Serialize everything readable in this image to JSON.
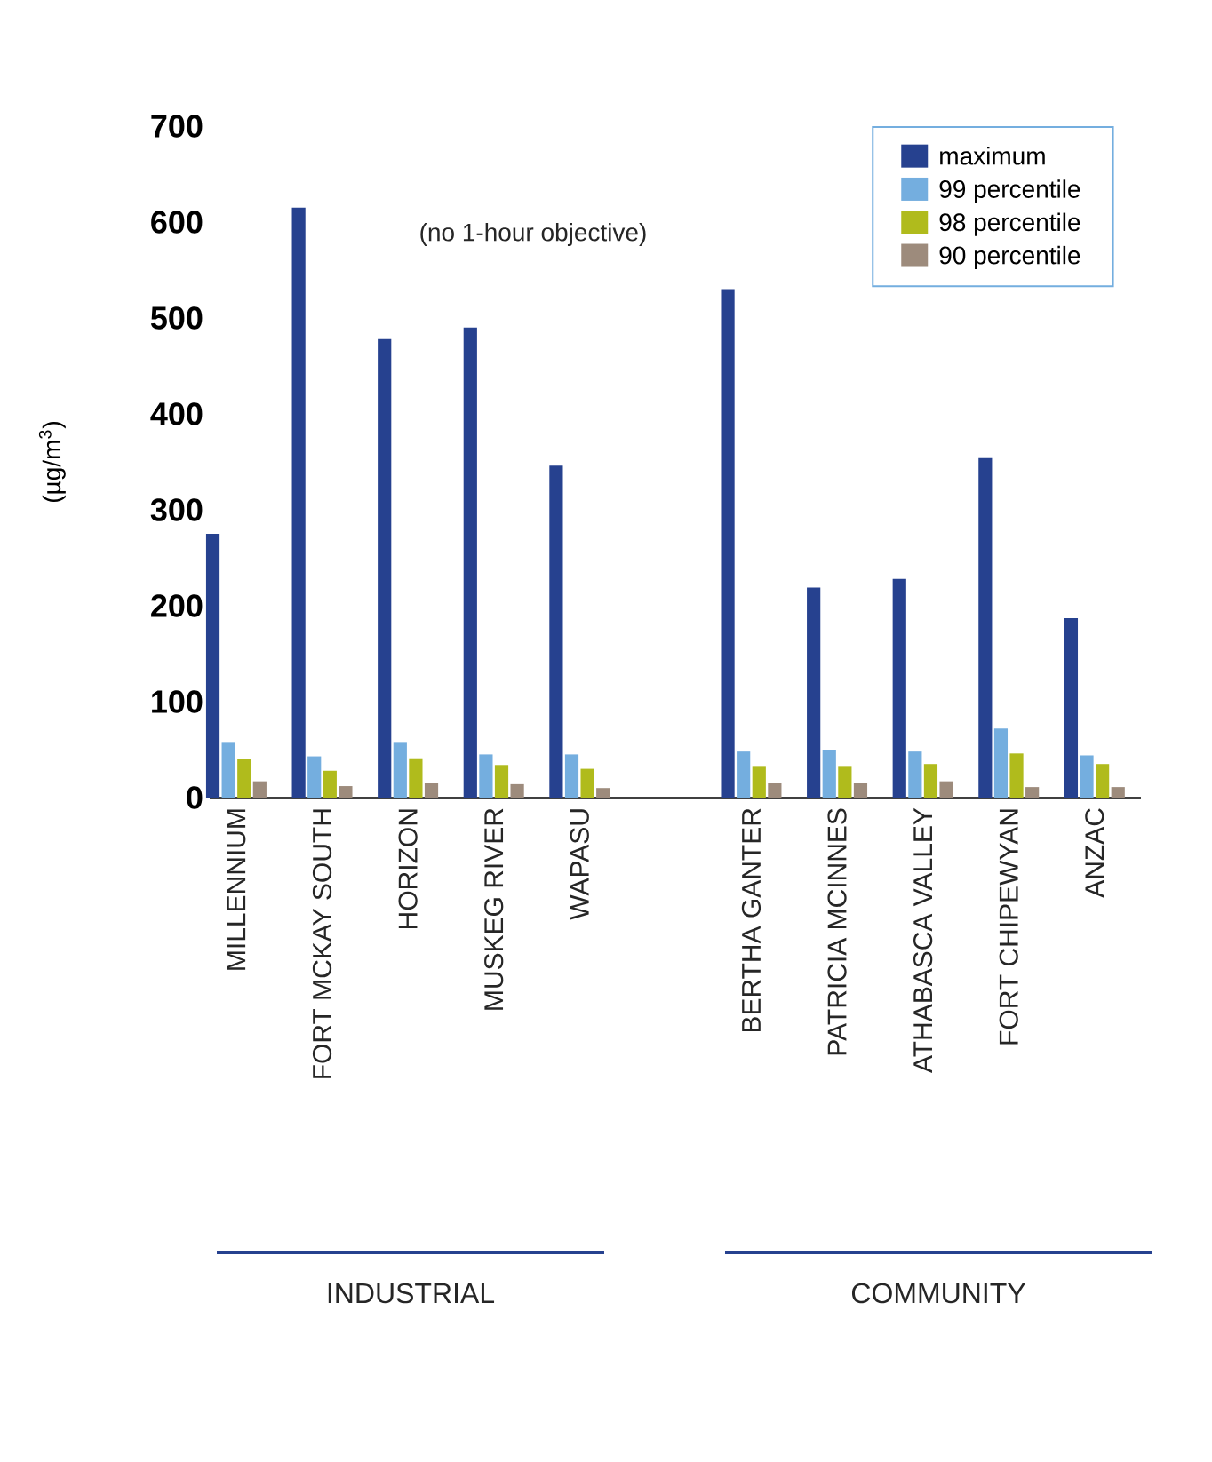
{
  "chart_data": {
    "type": "bar",
    "ylabel": "(µg/m$^{3}$)",
    "categories": [
      "MILLENNIUM",
      "FORT MCKAY SOUTH",
      "HORIZON",
      "MUSKEG RIVER",
      "WAPASU",
      null,
      "BERTHA GANTER",
      "PATRICIA MCINNES",
      "ATHABASCA VALLEY",
      "FORT CHIPEWYAN",
      "ANZAC"
    ],
    "series": [
      {
        "name": "maximum",
        "color": "#26418f",
        "values": [
          275,
          615,
          478,
          490,
          346,
          null,
          530,
          219,
          228,
          354,
          187
        ]
      },
      {
        "name": "99 percentile",
        "color": "#74aedf",
        "values": [
          58,
          43,
          58,
          45,
          45,
          null,
          48,
          50,
          48,
          72,
          44
        ]
      },
      {
        "name": "98 percentile",
        "color": "#b0bb1c",
        "values": [
          40,
          28,
          41,
          34,
          30,
          null,
          33,
          33,
          35,
          46,
          35
        ]
      },
      {
        "name": "90 percentile",
        "color": "#9d8b7c",
        "values": [
          17,
          12,
          15,
          14,
          10,
          null,
          15,
          15,
          17,
          11,
          11
        ]
      }
    ],
    "ylim": [
      0,
      700
    ],
    "yticks": [
      0,
      100,
      200,
      300,
      400,
      500,
      600,
      700
    ],
    "legend": "top right",
    "grid": false,
    "annotations": [
      "(no 1-hour objective)",
      "INDUSTRIAL",
      "COMMUNITY"
    ]
  }
}
